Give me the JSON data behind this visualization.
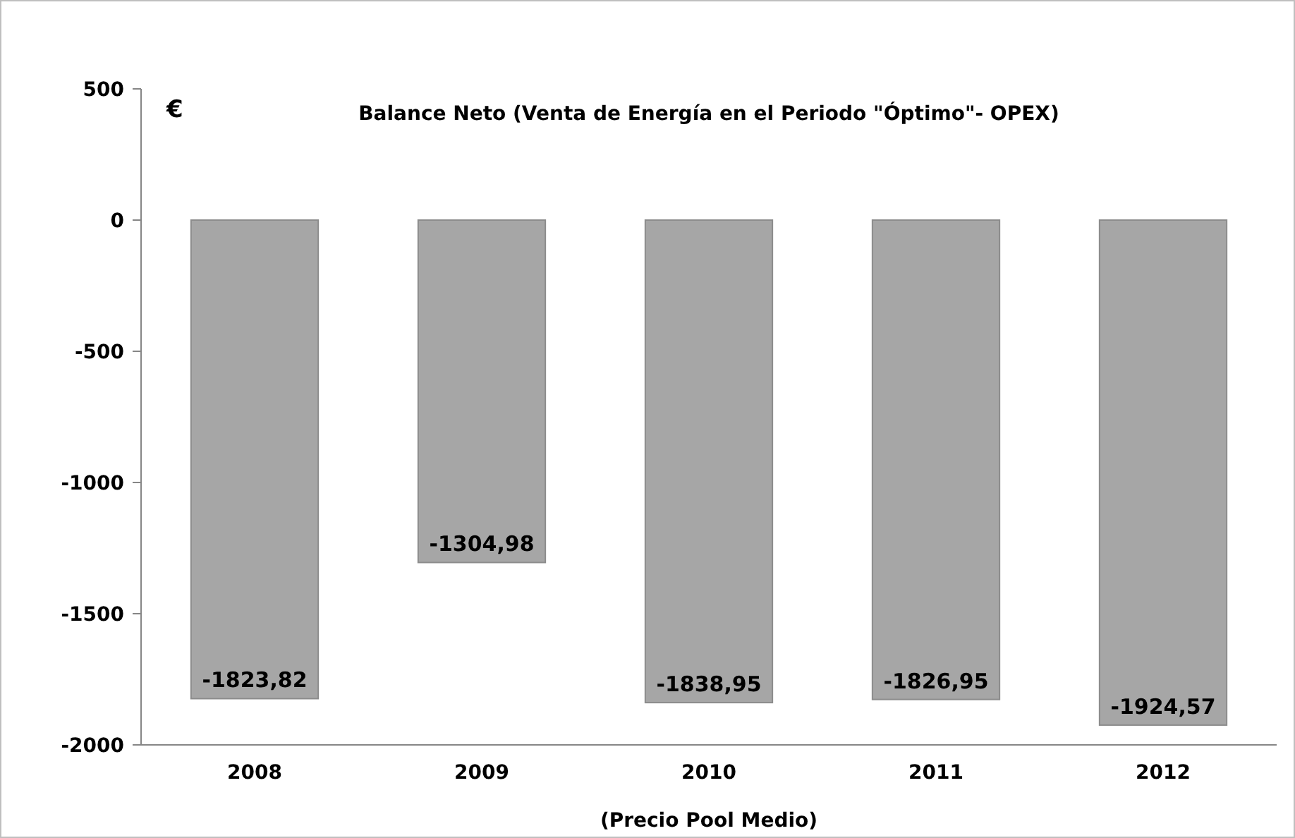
{
  "chart_data": {
    "type": "bar",
    "title": "Balance Neto (Venta de Energía en el Periodo \"Óptimo\"- OPEX)",
    "xlabel": "(Precio Pool Medio)",
    "annotations": [
      "€"
    ],
    "categories": [
      "2008",
      "2009",
      "2010",
      "2011",
      "2012"
    ],
    "values": [
      -1823.82,
      -1304.98,
      -1838.95,
      -1826.95,
      -1924.57
    ],
    "value_labels": [
      "-1823,82",
      "-1304,98",
      "-1838,95",
      "-1826,95",
      "-1924,57"
    ],
    "color": "#a6a6a6",
    "ylim": [
      -2000,
      500
    ],
    "yticks": [
      -2000,
      -1500,
      -1000,
      -500,
      0,
      500
    ],
    "grid": false
  }
}
